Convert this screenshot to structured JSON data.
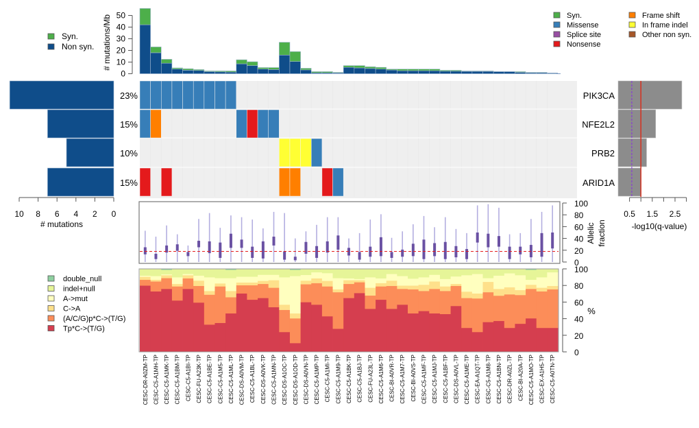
{
  "chart_data": [
    {
      "id": "mutation-rate",
      "type": "bar",
      "stacked": true,
      "ylabel": "# mutations/Mb",
      "ylim": [
        0,
        57
      ],
      "yticks": [
        0,
        10,
        20,
        30,
        40,
        50
      ],
      "legend": {
        "placement": "left",
        "entries": [
          {
            "label": "Syn.",
            "color": "#4daf4a"
          },
          {
            "label": "Non syn.",
            "color": "#0f4d8a"
          }
        ]
      },
      "series": [
        {
          "name": "Non syn.",
          "color": "#0f4d8a",
          "values": [
            42,
            18,
            9,
            4,
            3,
            2.8,
            1.8,
            1.6,
            1.4,
            8.5,
            7,
            4,
            3.6,
            16,
            10.5,
            3.3,
            0.8,
            0.8,
            0.7,
            5.5,
            5,
            4.5,
            4,
            3.2,
            2.6,
            2.6,
            2.6,
            2.6,
            2.2,
            2.2,
            2,
            2,
            2,
            1.8,
            1.8,
            1.2,
            0.8,
            0.8,
            0.6
          ]
        },
        {
          "name": "Syn.",
          "color": "#4daf4a",
          "values": [
            14,
            5,
            3.4,
            1,
            1.3,
            0.8,
            0.6,
            0.8,
            1,
            3.5,
            3.3,
            1.3,
            1.7,
            11,
            8.5,
            1.4,
            1,
            1,
            0.5,
            1.5,
            2,
            1.5,
            1.5,
            0.8,
            1.4,
            1.4,
            1.4,
            1.4,
            0.8,
            0.8,
            0.4,
            0.4,
            0.4,
            0,
            0,
            0.6,
            0.4,
            0.4,
            0
          ]
        }
      ]
    },
    {
      "id": "mutation-matrix",
      "type": "heatmap",
      "genes": [
        "PIK3CA",
        "NFE2L2",
        "PRB2",
        "ARID1A"
      ],
      "percent_labels": [
        "23%",
        "15%",
        "10%",
        "15%"
      ],
      "mutation_counts": [
        11,
        7,
        5,
        7
      ],
      "count_axis": {
        "label": "# mutations",
        "ticks": [
          10,
          8,
          6,
          4,
          2,
          0
        ],
        "lim": [
          0,
          11
        ]
      },
      "qvalue_axis": {
        "label": "-log10(q-value)",
        "tick_labels": [
          "0.5",
          "1.5",
          "2.5"
        ],
        "ticks": [
          0.5,
          1,
          1.5,
          2,
          2.5,
          3
        ],
        "lim": [
          0,
          3
        ]
      },
      "neg_log10_q": [
        2.8,
        1.65,
        1.25,
        1.0
      ],
      "significance_line": 1.0,
      "dashed_line": 0.6,
      "background_color": "#efefef",
      "legend": {
        "placement": "top-right",
        "entries": [
          {
            "key": "syn",
            "label": "Syn.",
            "color": "#4daf4a"
          },
          {
            "key": "missense",
            "label": "Missense",
            "color": "#377eb8"
          },
          {
            "key": "splice",
            "label": "Splice site",
            "color": "#984ea3"
          },
          {
            "key": "nonsense",
            "label": "Nonsense",
            "color": "#e41a1c"
          },
          {
            "key": "frameshift",
            "label": "Frame shift",
            "color": "#ff7f00"
          },
          {
            "key": "inframe",
            "label": "In frame indel",
            "color": "#ffff33"
          },
          {
            "key": "other",
            "label": "Other non syn.",
            "color": "#a65628"
          }
        ]
      },
      "cells": [
        {
          "gene": 0,
          "sample": 0,
          "type": "missense"
        },
        {
          "gene": 0,
          "sample": 1,
          "type": "missense"
        },
        {
          "gene": 0,
          "sample": 2,
          "type": "missense"
        },
        {
          "gene": 0,
          "sample": 3,
          "type": "missense"
        },
        {
          "gene": 0,
          "sample": 4,
          "type": "missense"
        },
        {
          "gene": 0,
          "sample": 5,
          "type": "missense"
        },
        {
          "gene": 0,
          "sample": 6,
          "type": "missense"
        },
        {
          "gene": 0,
          "sample": 7,
          "type": "missense"
        },
        {
          "gene": 0,
          "sample": 8,
          "type": "missense"
        },
        {
          "gene": 1,
          "sample": 0,
          "type": "missense"
        },
        {
          "gene": 1,
          "sample": 1,
          "type": "frameshift"
        },
        {
          "gene": 1,
          "sample": 9,
          "type": "missense"
        },
        {
          "gene": 1,
          "sample": 10,
          "type": "nonsense"
        },
        {
          "gene": 1,
          "sample": 11,
          "type": "missense"
        },
        {
          "gene": 1,
          "sample": 12,
          "type": "missense"
        },
        {
          "gene": 2,
          "sample": 13,
          "type": "inframe"
        },
        {
          "gene": 2,
          "sample": 14,
          "type": "inframe"
        },
        {
          "gene": 2,
          "sample": 15,
          "type": "inframe"
        },
        {
          "gene": 2,
          "sample": 16,
          "type": "missense"
        },
        {
          "gene": 3,
          "sample": 0,
          "type": "nonsense"
        },
        {
          "gene": 3,
          "sample": 2,
          "type": "nonsense"
        },
        {
          "gene": 3,
          "sample": 13,
          "type": "frameshift"
        },
        {
          "gene": 3,
          "sample": 14,
          "type": "frameshift"
        },
        {
          "gene": 3,
          "sample": 17,
          "type": "nonsense"
        },
        {
          "gene": 3,
          "sample": 18,
          "type": "missense"
        }
      ]
    },
    {
      "id": "allelic-fraction",
      "type": "box",
      "ylabel": "Allelic fraction",
      "ylim": [
        0,
        100
      ],
      "yticks": [
        0,
        20,
        40,
        60,
        80,
        100
      ],
      "reference_line": 18,
      "max": [
        53,
        43,
        62,
        47,
        28,
        73,
        83,
        58,
        79,
        76,
        72,
        57,
        85,
        83,
        40,
        52,
        63,
        76,
        76,
        40,
        49,
        72,
        81,
        41,
        52,
        64,
        78,
        59,
        76,
        56,
        49,
        96,
        98,
        92,
        47,
        49,
        73,
        85,
        96
      ],
      "q1": [
        13,
        5,
        16,
        19,
        10,
        25,
        15,
        7,
        24,
        24,
        7,
        6,
        28,
        4,
        3,
        14,
        7,
        16,
        21,
        11,
        4,
        9,
        10,
        7,
        9,
        10,
        5,
        10,
        5,
        8,
        5,
        33,
        25,
        26,
        5,
        13,
        8,
        9,
        23
      ],
      "q3": [
        25,
        14,
        28,
        30,
        17,
        36,
        35,
        33,
        48,
        38,
        26,
        35,
        43,
        18,
        9,
        34,
        27,
        35,
        45,
        24,
        17,
        26,
        42,
        17,
        21,
        31,
        38,
        32,
        34,
        27,
        22,
        50,
        48,
        44,
        26,
        26,
        29,
        49,
        50
      ]
    },
    {
      "id": "mutation-spectrum",
      "type": "bar",
      "stacked": true,
      "ylabel": "%",
      "ylim": [
        0,
        100
      ],
      "yticks": [
        0,
        20,
        40,
        60,
        80,
        100
      ],
      "legend": {
        "placement": "left",
        "entries": [
          {
            "label": "double_null",
            "color": "#8ed0a0"
          },
          {
            "label": "indel+null",
            "color": "#e6f598"
          },
          {
            "label": "A->mut",
            "color": "#ffffbf"
          },
          {
            "label": "C->A",
            "color": "#fee08b"
          },
          {
            "label": "(A/C/G)p*C->(T/G)",
            "color": "#fc8d59"
          },
          {
            "label": "Tp*C->(T/G)",
            "color": "#d53e4f"
          }
        ]
      },
      "series": [
        {
          "name": "Tp*C->(T/G)",
          "color": "#d53e4f",
          "values": [
            80,
            73,
            76,
            62,
            76,
            59.5,
            33,
            35,
            46.5,
            70.5,
            63,
            65,
            54,
            24,
            10.7,
            60,
            57,
            43,
            28,
            65,
            71,
            52,
            63,
            52,
            57,
            46.5,
            49.3,
            46.5,
            45.7,
            55.4,
            29,
            24,
            36,
            37.4,
            29,
            34,
            40.5,
            29,
            29
          ]
        },
        {
          "name": "(A/C/G)p*C->(T/G)",
          "color": "#fc8d59",
          "values": [
            7,
            12,
            13,
            17,
            12.7,
            20.1,
            36,
            44,
            19.5,
            9.9,
            17.4,
            17,
            23.4,
            26.7,
            29.8,
            21.6,
            26,
            36,
            44,
            17,
            13,
            16,
            16,
            27.6,
            19,
            29,
            24.2,
            29.5,
            27.8,
            24.2,
            36,
            40.5,
            36,
            30.4,
            40.4,
            34.6,
            35.5,
            44,
            46.5
          ]
        },
        {
          "name": "C->A",
          "color": "#fee08b",
          "values": [
            3.6,
            2,
            3.5,
            3,
            3.8,
            6.4,
            4.5,
            3.6,
            7.5,
            3.3,
            3.3,
            3.7,
            9.1,
            6.3,
            6,
            4.4,
            5.7,
            6.7,
            3.5,
            4.5,
            2.5,
            9.4,
            4,
            6.4,
            4,
            4.5,
            7.5,
            9,
            5.5,
            2.4,
            7.7,
            6,
            12.5,
            8.2,
            8.6,
            6,
            5,
            4.4,
            4.1
          ]
        },
        {
          "name": "A->mut",
          "color": "#ffffbf",
          "values": [
            1.4,
            4.5,
            1.1,
            8,
            1.5,
            6,
            16.5,
            6.4,
            15.5,
            7,
            7,
            7.3,
            6.5,
            33,
            45,
            6.8,
            7.3,
            9.3,
            13.5,
            2.2,
            1.5,
            12.6,
            5.7,
            8,
            11.5,
            8.4,
            9,
            8,
            9,
            9,
            19.8,
            23.5,
            4.5,
            16,
            16.8,
            17.9,
            6,
            12.6,
            16.4
          ]
        },
        {
          "name": "indel+null",
          "color": "#e6f598",
          "values": [
            8,
            8.5,
            5.4,
            10,
            6,
            8,
            10,
            11,
            10,
            9.3,
            9.3,
            7,
            7,
            10,
            7.5,
            7.2,
            4,
            5,
            11,
            11.3,
            12,
            10,
            11.3,
            6,
            8.5,
            11.6,
            10,
            7,
            12,
            9,
            7.5,
            6,
            11,
            8,
            5.2,
            7.5,
            12,
            10,
            4
          ]
        },
        {
          "name": "double_null",
          "color": "#8ed0a0",
          "values": [
            0,
            0,
            1,
            0,
            0,
            0,
            0,
            0,
            1,
            0,
            0,
            0,
            0,
            0,
            1,
            0,
            0,
            0,
            0,
            0,
            0,
            0,
            0,
            0,
            0,
            0,
            0,
            0,
            0,
            0,
            0,
            0,
            0,
            0,
            0,
            0,
            1,
            0,
            0
          ]
        }
      ]
    }
  ],
  "samples": [
    "CESC-DR-A0ZM-TP",
    "CESC-C5-A1MH-TP",
    "CESC-C5-A1MK-TP",
    "CESC-C5-A1BM-TP",
    "CESC-C5-A1BI-TP",
    "CESC-FU-A23K-TP",
    "CESC-C5-A1BE-TP",
    "CESC-C5-A1M5-TP",
    "CESC-C5-A1ML-TP",
    "CESC-DS-A0VM-TP",
    "CESC-C5-A1BL-TP",
    "CESC-DS-A0VK-TP",
    "CESC-C5-A1MN-TP",
    "CESC-DS-A1OC-TP",
    "CESC-DS-A1OD-TP",
    "CESC-DS-A0VN-TP",
    "CESC-C5-A1MP-TP",
    "CESC-C5-A1MI-TP",
    "CESC-C5-A1M9-TP",
    "CESC-C5-A1BK-TP",
    "CESC-C5-A1BJ-TP",
    "CESC-FU-A23L-TP",
    "CESC-C5-A1M6-TP",
    "CESC-BI-A0VR-TP",
    "CESC-C5-A1M7-TP",
    "CESC-BI-A0VS-TP",
    "CESC-C5-A1MF-TP",
    "CESC-C5-A1MJ-TP",
    "CESC-C5-A1BF-TP",
    "CESC-DS-A0VL-TP",
    "CESC-C5-A1ME-TP",
    "CESC-EA-A1QT-TP",
    "CESC-C5-A1M8-TP",
    "CESC-C5-A1BN-TP",
    "CESC-DR-A0ZL-TP",
    "CESC-BI-A20A-TP",
    "CESC-C5-A1MO-TP",
    "CESC-EX-A1H5-TP",
    "CESC-C5-A0TN-TP"
  ],
  "labels": {
    "mutation_rate_axis": "# mutations/Mb",
    "count_axis": "# mutations",
    "qvalue_axis": "-log10(q-value)",
    "allelic_axis_line1": "Allelic",
    "allelic_axis_line2": "fraction",
    "spectrum_axis": "%"
  }
}
